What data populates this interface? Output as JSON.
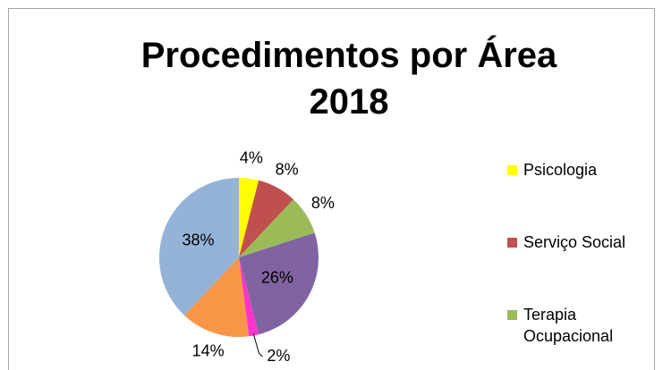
{
  "chart_data": {
    "type": "pie",
    "title": "Procedimentos por Área 2018",
    "categories": [
      "Psicologia",
      "Serviço Social",
      "Terapia Ocupacional",
      null,
      null,
      null,
      null
    ],
    "values": [
      4,
      8,
      8,
      26,
      2,
      14,
      38
    ],
    "value_labels": [
      "4%",
      "8%",
      "8%",
      "26%",
      "2%",
      "14%",
      "38%"
    ],
    "colors": [
      "#ffff00",
      "#c0504d",
      "#9bbb59",
      "#8064a2",
      "#ff33cc",
      "#f79646",
      "#95b3d7"
    ]
  }
}
